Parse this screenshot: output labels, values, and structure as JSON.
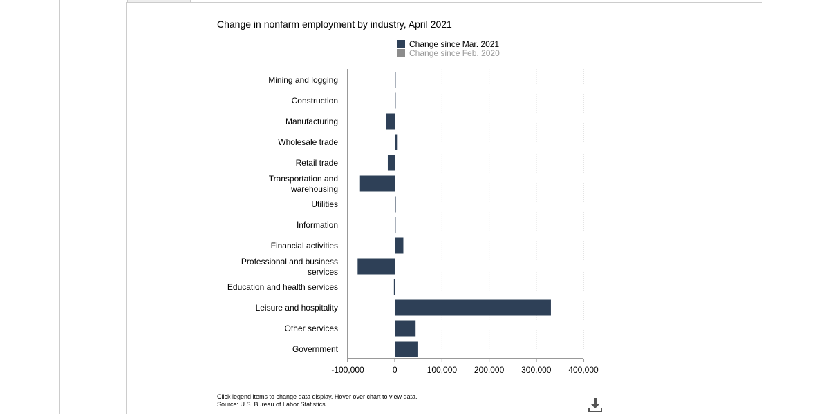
{
  "chart_data": {
    "type": "bar",
    "orientation": "horizontal",
    "title": "Change in nonfarm employment by industry, April 2021",
    "categories": [
      "Mining and logging",
      "Construction",
      "Manufacturing",
      "Wholesale trade",
      "Retail trade",
      "Transportation and warehousing",
      "Utilities",
      "Information",
      "Financial activities",
      "Professional and business services",
      "Education and health services",
      "Leisure and hospitality",
      "Other services",
      "Government"
    ],
    "series": [
      {
        "name": "Change since Mar. 2021",
        "color": "#2e4057",
        "visible": true,
        "values": [
          1000,
          0,
          -18000,
          6000,
          -15000,
          -74000,
          2000,
          1000,
          18000,
          -79000,
          -2000,
          331000,
          44000,
          48000
        ]
      },
      {
        "name": "Change since Feb. 2020",
        "color": "#8c8c8c",
        "visible": false
      }
    ],
    "xlim": [
      -100000,
      400000
    ],
    "x_ticks": [
      -100000,
      0,
      100000,
      200000,
      300000,
      400000
    ],
    "x_tick_labels": [
      "-100,000",
      "0",
      "100,000",
      "200,000",
      "300,000",
      "400,000"
    ],
    "grid": "vertical dotted",
    "legend_placement": "top-center"
  },
  "footer": {
    "note": "Click legend items to change data display. Hover over chart to view data.",
    "source": "Source: U.S. Bureau of Labor Statistics."
  },
  "icons": {
    "download": "download-icon"
  }
}
